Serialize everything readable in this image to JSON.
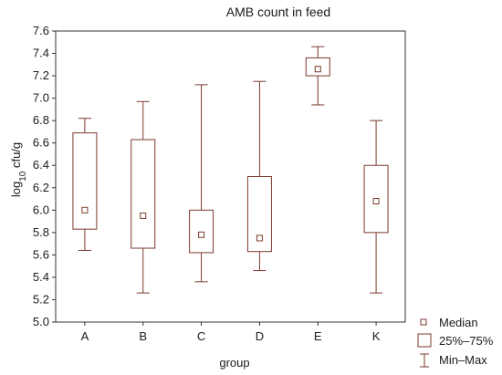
{
  "chart_data": {
    "type": "boxplot",
    "title": "AMB count in feed",
    "xlabel": "group",
    "ylabel_prefix": "log",
    "ylabel_subscript": "10",
    "ylabel_suffix": " cfu/g",
    "ylim": [
      5.0,
      7.6
    ],
    "yticks": [
      5.0,
      5.2,
      5.4,
      5.6,
      5.8,
      6.0,
      6.2,
      6.4,
      6.6,
      6.8,
      7.0,
      7.2,
      7.4,
      7.6
    ],
    "ytick_labels": [
      "5.0",
      "5.2",
      "5.4",
      "5.6",
      "5.8",
      "6.0",
      "6.2",
      "6.4",
      "6.6",
      "6.8",
      "7.0",
      "7.2",
      "7.4",
      "7.6"
    ],
    "categories": [
      "A",
      "B",
      "C",
      "D",
      "E",
      "K"
    ],
    "series": [
      {
        "min": 5.64,
        "q1": 5.83,
        "median": 6.0,
        "q3": 6.69,
        "max": 6.82
      },
      {
        "min": 5.26,
        "q1": 5.66,
        "median": 5.95,
        "q3": 6.63,
        "max": 6.97
      },
      {
        "min": 5.36,
        "q1": 5.62,
        "median": 5.78,
        "q3": 6.0,
        "max": 7.12
      },
      {
        "min": 5.46,
        "q1": 5.63,
        "median": 5.75,
        "q3": 6.3,
        "max": 7.15
      },
      {
        "min": 6.94,
        "q1": 7.2,
        "median": 7.26,
        "q3": 7.36,
        "max": 7.46
      },
      {
        "min": 5.26,
        "q1": 5.8,
        "median": 6.08,
        "q3": 6.4,
        "max": 6.8
      }
    ],
    "legend": {
      "placement": "bottom-right",
      "items": [
        "Median",
        "25%–75%",
        "Min–Max"
      ]
    },
    "grid": false,
    "colors": {
      "box": "#7b3a2e",
      "axis": "#333333"
    }
  }
}
